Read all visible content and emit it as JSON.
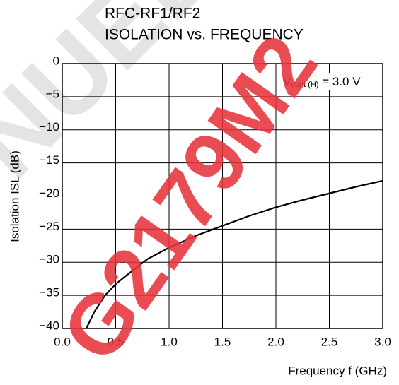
{
  "chart_data": {
    "type": "line",
    "title": [
      "RFC-RF1/RF2",
      "ISOLATION vs. FREQUENCY"
    ],
    "x_label": "Frequency  f (GHz)",
    "y_label": "Isolation  ISL (dB)",
    "annotation": [
      "V",
      "cont (H)",
      " = 3.0 V"
    ],
    "watermark": [
      "NUED",
      "G2179M2"
    ],
    "xlim": [
      0,
      3
    ],
    "ylim": [
      -40,
      0
    ],
    "xticks": [
      {
        "value": 0,
        "label": "0.0"
      },
      0.5,
      {
        "value": 1,
        "label": "1.0"
      },
      1.5,
      {
        "value": 2,
        "label": "2.0"
      },
      2.5,
      {
        "value": 3,
        "label": "3.0"
      }
    ],
    "yticks": [
      0,
      {
        "value": -5,
        "label": "−5"
      },
      {
        "value": -10,
        "label": "−10"
      },
      {
        "value": -15,
        "label": "−15"
      },
      {
        "value": -20,
        "label": "−20"
      },
      {
        "value": -25,
        "label": "−25"
      },
      {
        "value": -30,
        "label": "−30"
      },
      {
        "value": -35,
        "label": "−35"
      },
      {
        "value": -40,
        "label": "−40"
      }
    ],
    "grid": true,
    "series": [
      {
        "color": "#000000",
        "x": [
          0.225,
          0.3,
          0.4,
          0.5,
          0.6,
          0.8,
          1.0,
          1.25,
          1.5,
          1.75,
          2.0,
          2.25,
          2.5,
          2.75,
          3.0
        ],
        "values": [
          -40,
          -37.5,
          -35,
          -33.3,
          -32,
          -29.5,
          -27.8,
          -26,
          -24.5,
          -23,
          -21.7,
          -20.6,
          -19.6,
          -18.6,
          -17.7
        ]
      }
    ]
  }
}
